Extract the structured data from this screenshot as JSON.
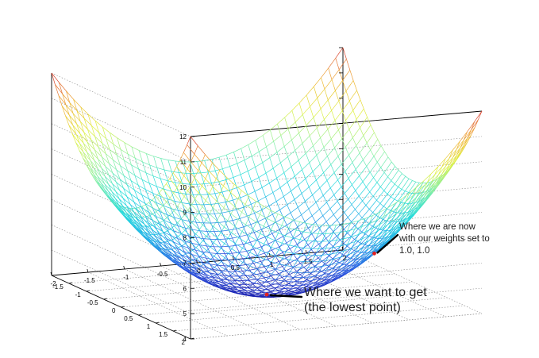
{
  "chart_data": {
    "type": "surface",
    "function": "z = 4 + x^2 + y^2",
    "x_range": [
      -2,
      2
    ],
    "y_range": [
      -2,
      2
    ],
    "grid_divisions": 40,
    "zlim": [
      4,
      12
    ],
    "z_ticks": [
      "4",
      "5",
      "6",
      "7",
      "8",
      "9",
      "10",
      "11",
      "12"
    ],
    "y_ticks": [
      "-1.5",
      "-1",
      "-0.5",
      "0",
      "0.5",
      "1",
      "1.5",
      "2"
    ],
    "x_ticks": [
      "-2",
      "-1.5",
      "-1",
      "-0.5",
      "0",
      "0.5",
      "1",
      "1.5",
      "2"
    ],
    "colormap": [
      "#1a1aa8",
      "#2a52e0",
      "#1fa8e8",
      "#22dcdc",
      "#8ef0a0",
      "#e0f040",
      "#f0b030",
      "#d83a3a"
    ],
    "points": [
      {
        "name": "current-weights",
        "x": 1.0,
        "y": 1.0,
        "z": 6.0,
        "color": "#e02020"
      },
      {
        "name": "minimum",
        "x": 0,
        "y": 0,
        "z": 4.0,
        "color": "#e02020"
      }
    ],
    "annotations": {
      "now_line1": "Where we are now",
      "now_line2": "with our weights set to",
      "now_line3": "1.0, 1.0",
      "want_line1": "Where we want to get",
      "want_line2": "(the lowest point)"
    }
  }
}
